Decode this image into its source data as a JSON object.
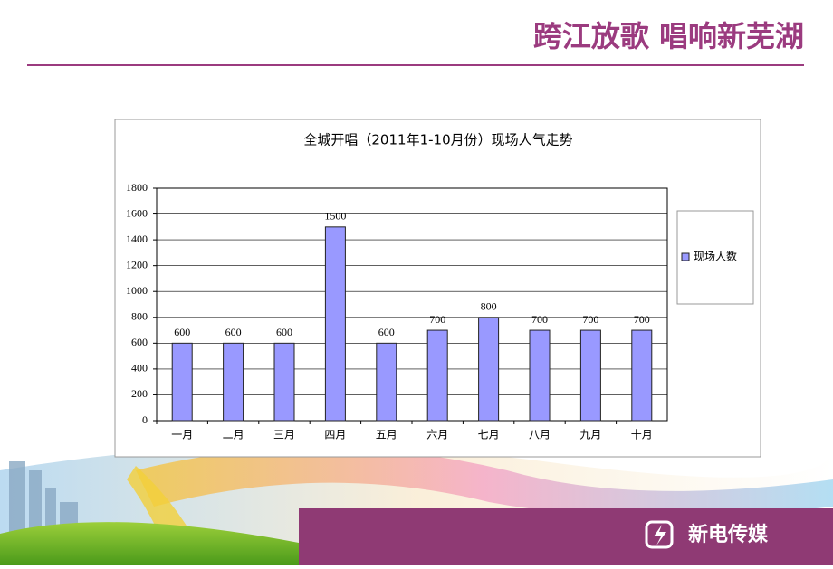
{
  "header": {
    "title": "跨江放歌 唱响新芜湖"
  },
  "chart_data": {
    "type": "bar",
    "title": "全城开唱（2011年1-10月份）现场人气走势",
    "categories": [
      "一月",
      "二月",
      "三月",
      "四月",
      "五月",
      "六月",
      "七月",
      "八月",
      "九月",
      "十月"
    ],
    "series": [
      {
        "name": "现场人数",
        "color": "#9999ff",
        "values": [
          600,
          600,
          600,
          1500,
          600,
          700,
          800,
          700,
          700,
          700
        ]
      }
    ],
    "ylim": [
      0,
      1800
    ],
    "yticks": [
      0,
      200,
      400,
      600,
      800,
      1000,
      1200,
      1400,
      1600,
      1800
    ],
    "grid": true,
    "legend": "right"
  },
  "footer": {
    "brand": "新电传媒"
  }
}
